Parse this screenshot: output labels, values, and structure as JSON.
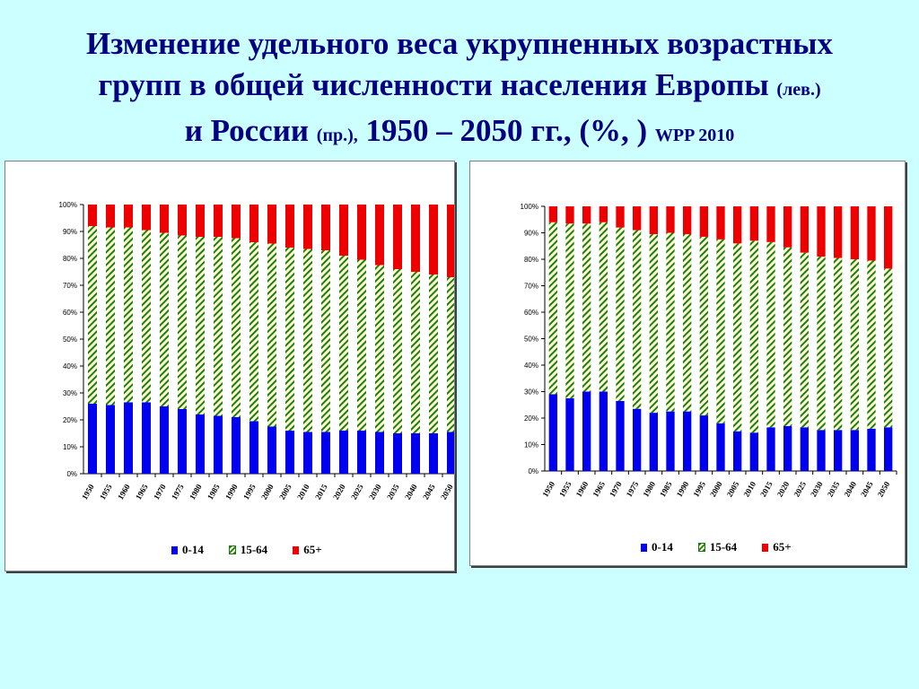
{
  "title": {
    "line1": "Изменение удельного веса укрупненных возрастных",
    "line2a": "групп в общей численности населения Европы ",
    "line2b": "(лев.)",
    "line3a": "и России ",
    "line3b": "(пр.),",
    "line3c": " 1950 – 2050 гг., (%, ) ",
    "line3d": "WPP 2010"
  },
  "colors": {
    "age_0_14": "#0000ee",
    "age_15_64_stripe": "#1e7a1e",
    "age_15_64_bg": "#ffffcc",
    "age_65_plus": "#ee0000"
  },
  "chart_data": [
    {
      "type": "bar",
      "stacked": "percent",
      "region": "Europe (left)",
      "categories": [
        "1950",
        "1955",
        "1960",
        "1965",
        "1970",
        "1975",
        "1980",
        "1985",
        "1990",
        "1995",
        "2000",
        "2005",
        "2010",
        "2015",
        "2020",
        "2025",
        "2030",
        "2035",
        "2040",
        "2045",
        "2050"
      ],
      "series": [
        {
          "name": "0-14",
          "values": [
            26,
            25.5,
            26.5,
            26.5,
            25,
            24,
            22,
            21.5,
            21,
            19.5,
            17.5,
            16,
            15.5,
            15.5,
            16,
            16,
            15.5,
            15,
            15,
            15,
            15.5
          ]
        },
        {
          "name": "15-64",
          "values": [
            66,
            66,
            65,
            64,
            64.5,
            64.5,
            66,
            66.5,
            66.5,
            66.5,
            68,
            68,
            68,
            67.5,
            65,
            63.5,
            62,
            61,
            60,
            59,
            57.5
          ]
        },
        {
          "name": "65+",
          "values": [
            8,
            8.5,
            8.5,
            9.5,
            10.5,
            11.5,
            12,
            12,
            12.5,
            14,
            14.5,
            16,
            16.5,
            17,
            19,
            20.5,
            22.5,
            24,
            25,
            26,
            27
          ]
        }
      ],
      "yticks": [
        "0%",
        "10%",
        "20%",
        "30%",
        "40%",
        "50%",
        "60%",
        "70%",
        "80%",
        "90%",
        "100%"
      ],
      "ylim": [
        0,
        100
      ],
      "legend": "bottom"
    },
    {
      "type": "bar",
      "stacked": "percent",
      "region": "Russia (right)",
      "categories": [
        "1950",
        "1955",
        "1960",
        "1965",
        "1970",
        "1975",
        "1980",
        "1985",
        "1990",
        "1995",
        "2000",
        "2005",
        "2010",
        "2015",
        "2020",
        "2025",
        "2030",
        "2035",
        "2040",
        "2045",
        "2050"
      ],
      "series": [
        {
          "name": "0-14",
          "values": [
            29,
            27.5,
            30,
            30,
            26.5,
            23.5,
            22,
            22.5,
            22.5,
            21,
            18,
            15,
            14.5,
            16.5,
            17,
            16.5,
            15.5,
            15.5,
            15.5,
            16,
            16.5
          ]
        },
        {
          "name": "15-64",
          "values": [
            65,
            66,
            63.5,
            64,
            65.5,
            67.5,
            67.5,
            67.5,
            67,
            67.5,
            69.5,
            71,
            72.5,
            70,
            67.5,
            66,
            65.5,
            65,
            64.5,
            63.5,
            60
          ]
        },
        {
          "name": "65+",
          "values": [
            6,
            6.5,
            6.5,
            6,
            8,
            9,
            10.5,
            10,
            10.5,
            11.5,
            12.5,
            14,
            13,
            13.5,
            15.5,
            17.5,
            19,
            19.5,
            20,
            20.5,
            23.5
          ]
        }
      ],
      "yticks": [
        "0%",
        "10%",
        "20%",
        "30%",
        "40%",
        "50%",
        "60%",
        "70%",
        "80%",
        "90%",
        "100%"
      ],
      "ylim": [
        0,
        100
      ],
      "legend": "bottom"
    }
  ]
}
